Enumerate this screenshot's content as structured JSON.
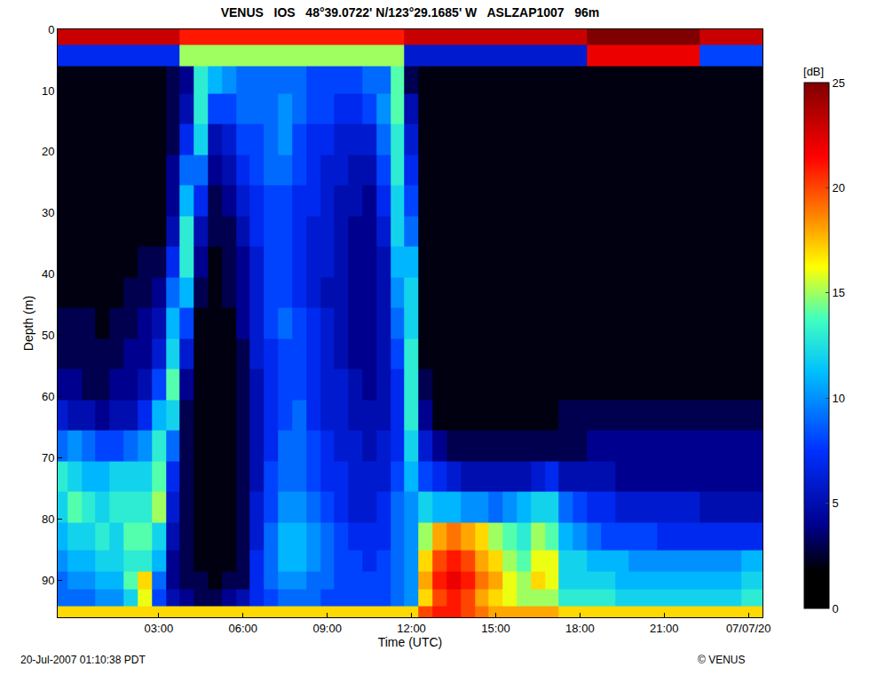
{
  "chart_data": {
    "type": "heatmap",
    "title": "VENUS   IOS   48°39.0722' N/123°29.1685' W   ASLZAP1007   96m",
    "x_label": "Time (UTC)",
    "y_label": "Depth (m)",
    "annotations": [
      "20-Jul-2007 01:10:38 PDT",
      "© VENUS"
    ],
    "xlim": [
      -0.6,
      24.5
    ],
    "xticks": [
      {
        "value": 3,
        "label": "03:00"
      },
      {
        "value": 6,
        "label": "06:00"
      },
      {
        "value": 9,
        "label": "09:00"
      },
      {
        "value": 12,
        "label": "12:00"
      },
      {
        "value": 15,
        "label": "15:00"
      },
      {
        "value": 18,
        "label": "18:00"
      },
      {
        "value": 21,
        "label": "21:00"
      },
      {
        "value": 24,
        "label": "07/07/20"
      }
    ],
    "ylim": [
      96,
      0
    ],
    "yticks": [
      0,
      10,
      20,
      30,
      40,
      50,
      60,
      70,
      80,
      90
    ],
    "grid": false,
    "colorbar": {
      "title": "[dB]",
      "range": [
        0,
        25
      ],
      "ticks": [
        0,
        5,
        10,
        15,
        20,
        25
      ]
    },
    "x": [
      -0.5,
      0,
      0.5,
      1,
      1.5,
      2,
      2.5,
      3,
      3.5,
      4,
      4.5,
      5,
      5.5,
      6,
      6.5,
      7,
      7.5,
      8,
      8.5,
      9,
      9.5,
      10,
      10.5,
      11,
      11.5,
      12,
      12.5,
      13,
      13.5,
      14,
      14.5,
      15,
      15.5,
      16,
      16.5,
      17,
      17.5,
      18,
      18.5,
      19,
      19.5,
      20,
      20.5,
      21,
      21.5,
      22,
      22.5,
      23,
      23.5,
      24,
      24.5
    ],
    "y": [
      1,
      4,
      8,
      13,
      18,
      23,
      28,
      33,
      38,
      43,
      48,
      53,
      58,
      63,
      68,
      73,
      78,
      83,
      87,
      90,
      93,
      95.5
    ],
    "z": [
      [
        23,
        23,
        23,
        23,
        23,
        23,
        23,
        23,
        23,
        21,
        21,
        21,
        21,
        21,
        21,
        21,
        21,
        21,
        21,
        21,
        21,
        21,
        21,
        21,
        21,
        23,
        23,
        23,
        23,
        23,
        23,
        23,
        23,
        23,
        23,
        23,
        23,
        23,
        25,
        25,
        25,
        25,
        25,
        25,
        25,
        25,
        23,
        23,
        23,
        23,
        23
      ],
      [
        7,
        7,
        7,
        7,
        7,
        7,
        7,
        7,
        7,
        15,
        15,
        15,
        15,
        15,
        15,
        15,
        15,
        15,
        15,
        15,
        15,
        15,
        15,
        15,
        15,
        6,
        6,
        6,
        6,
        6,
        6,
        6,
        6,
        6,
        6,
        6,
        6,
        6,
        22,
        22,
        22,
        22,
        22,
        22,
        22,
        22,
        8,
        8,
        8,
        8,
        8
      ],
      [
        2,
        2,
        2,
        2,
        2,
        2,
        2,
        2,
        3,
        4,
        13,
        11,
        10,
        9,
        9,
        9,
        9,
        9,
        8,
        8,
        8,
        8,
        9,
        9,
        14,
        3,
        2,
        2,
        2,
        2,
        2,
        2,
        2,
        2,
        2,
        2,
        2,
        2,
        2,
        2,
        2,
        2,
        2,
        2,
        2,
        2,
        2,
        2,
        2,
        2,
        2
      ],
      [
        2,
        2,
        2,
        2,
        2,
        2,
        2,
        2,
        3,
        5,
        13,
        8,
        8,
        9,
        9,
        9,
        10,
        9,
        8,
        8,
        7,
        7,
        8,
        10,
        14,
        5,
        2,
        2,
        2,
        2,
        2,
        2,
        2,
        2,
        2,
        2,
        2,
        2,
        2,
        2,
        2,
        2,
        2,
        2,
        2,
        2,
        2,
        2,
        2,
        2,
        2
      ],
      [
        2,
        2,
        2,
        2,
        2,
        2,
        2,
        2,
        3,
        7,
        12,
        5,
        6,
        8,
        8,
        9,
        10,
        8,
        7,
        7,
        6,
        6,
        6,
        9,
        13,
        6,
        2,
        2,
        2,
        2,
        2,
        2,
        2,
        2,
        2,
        2,
        2,
        2,
        2,
        2,
        2,
        2,
        2,
        2,
        2,
        2,
        2,
        2,
        2,
        2,
        2
      ],
      [
        2,
        2,
        2,
        2,
        2,
        2,
        2,
        2,
        4,
        9,
        9,
        4,
        5,
        7,
        8,
        9,
        9,
        8,
        7,
        6,
        6,
        5,
        5,
        8,
        13,
        7,
        2,
        2,
        2,
        2,
        2,
        2,
        2,
        2,
        2,
        2,
        2,
        2,
        2,
        2,
        2,
        2,
        2,
        2,
        2,
        2,
        2,
        2,
        2,
        2,
        2
      ],
      [
        2,
        2,
        2,
        2,
        2,
        2,
        2,
        2,
        4,
        11,
        7,
        3,
        4,
        6,
        7,
        8,
        8,
        7,
        7,
        6,
        5,
        5,
        4,
        7,
        12,
        8,
        2,
        2,
        2,
        2,
        2,
        2,
        2,
        2,
        2,
        2,
        2,
        2,
        2,
        2,
        2,
        2,
        2,
        2,
        2,
        2,
        2,
        2,
        2,
        2,
        2
      ],
      [
        2,
        2,
        2,
        2,
        2,
        2,
        2,
        2,
        5,
        13,
        5,
        3,
        3,
        5,
        7,
        8,
        8,
        7,
        6,
        6,
        5,
        4,
        4,
        6,
        12,
        9,
        2,
        2,
        2,
        2,
        2,
        2,
        2,
        2,
        2,
        2,
        2,
        2,
        2,
        2,
        2,
        2,
        2,
        2,
        2,
        2,
        2,
        2,
        2,
        2,
        2
      ],
      [
        2,
        2,
        2,
        2,
        2,
        2,
        3,
        3,
        7,
        13,
        4,
        2,
        3,
        4,
        6,
        8,
        8,
        7,
        6,
        6,
        5,
        4,
        4,
        5,
        11,
        11,
        2,
        2,
        2,
        2,
        2,
        2,
        2,
        2,
        2,
        2,
        2,
        2,
        2,
        2,
        2,
        2,
        2,
        2,
        2,
        2,
        2,
        2,
        2,
        2,
        2
      ],
      [
        2,
        2,
        2,
        2,
        2,
        3,
        3,
        4,
        9,
        11,
        3,
        2,
        3,
        4,
        6,
        8,
        8,
        7,
        6,
        5,
        5,
        4,
        4,
        5,
        10,
        12,
        2,
        2,
        2,
        2,
        2,
        2,
        2,
        2,
        2,
        2,
        2,
        2,
        2,
        2,
        2,
        2,
        2,
        2,
        2,
        2,
        2,
        2,
        2,
        2,
        2
      ],
      [
        3,
        3,
        3,
        2,
        3,
        3,
        4,
        5,
        11,
        8,
        2,
        2,
        2,
        4,
        6,
        8,
        9,
        8,
        7,
        6,
        5,
        4,
        4,
        5,
        9,
        12,
        2,
        2,
        2,
        2,
        2,
        2,
        2,
        2,
        2,
        2,
        2,
        2,
        2,
        2,
        2,
        2,
        2,
        2,
        2,
        2,
        2,
        2,
        2,
        2,
        2
      ],
      [
        3,
        3,
        3,
        3,
        3,
        4,
        4,
        6,
        12,
        6,
        2,
        2,
        2,
        3,
        6,
        7,
        8,
        8,
        7,
        6,
        5,
        4,
        4,
        5,
        8,
        13,
        2,
        2,
        2,
        2,
        2,
        2,
        2,
        2,
        2,
        2,
        2,
        2,
        2,
        2,
        2,
        2,
        2,
        2,
        2,
        2,
        2,
        2,
        2,
        2,
        2
      ],
      [
        4,
        4,
        3,
        3,
        4,
        4,
        5,
        8,
        14,
        4,
        2,
        2,
        2,
        3,
        5,
        7,
        8,
        8,
        7,
        6,
        6,
        5,
        4,
        5,
        7,
        13,
        3,
        2,
        2,
        2,
        2,
        2,
        2,
        2,
        2,
        2,
        2,
        2,
        2,
        2,
        2,
        2,
        2,
        2,
        2,
        2,
        2,
        2,
        2,
        2,
        2
      ],
      [
        6,
        5,
        5,
        4,
        5,
        5,
        7,
        11,
        12,
        3,
        2,
        2,
        2,
        3,
        5,
        7,
        8,
        9,
        7,
        6,
        6,
        5,
        5,
        5,
        7,
        13,
        4,
        2,
        2,
        2,
        2,
        2,
        2,
        2,
        2,
        2,
        3,
        3,
        3,
        3,
        3,
        3,
        3,
        3,
        3,
        3,
        3,
        3,
        3,
        3,
        3
      ],
      [
        9,
        10,
        9,
        8,
        8,
        9,
        10,
        13,
        9,
        3,
        2,
        2,
        2,
        3,
        5,
        7,
        9,
        9,
        8,
        7,
        6,
        6,
        5,
        6,
        7,
        12,
        6,
        4,
        3,
        3,
        3,
        3,
        3,
        3,
        3,
        3,
        3,
        3,
        4,
        4,
        4,
        4,
        4,
        4,
        4,
        4,
        4,
        4,
        4,
        4,
        4
      ],
      [
        13,
        12,
        11,
        11,
        12,
        12,
        12,
        14,
        7,
        3,
        2,
        2,
        2,
        3,
        5,
        8,
        9,
        9,
        8,
        7,
        7,
        6,
        6,
        6,
        8,
        11,
        8,
        7,
        6,
        5,
        5,
        5,
        5,
        5,
        6,
        7,
        5,
        5,
        5,
        5,
        4,
        4,
        4,
        4,
        4,
        4,
        4,
        4,
        4,
        4,
        4
      ],
      [
        12,
        14,
        13,
        12,
        13,
        13,
        13,
        15,
        6,
        3,
        2,
        2,
        2,
        3,
        6,
        8,
        10,
        10,
        9,
        8,
        7,
        6,
        6,
        7,
        9,
        10,
        12,
        11,
        11,
        10,
        10,
        9,
        10,
        11,
        12,
        12,
        9,
        8,
        7,
        7,
        6,
        6,
        6,
        6,
        6,
        6,
        5,
        5,
        5,
        5,
        5
      ],
      [
        11,
        12,
        12,
        13,
        12,
        14,
        14,
        12,
        5,
        3,
        2,
        2,
        2,
        3,
        6,
        9,
        11,
        11,
        10,
        9,
        8,
        7,
        7,
        7,
        9,
        10,
        15,
        18,
        19,
        18,
        17,
        15,
        14,
        13,
        15,
        14,
        11,
        10,
        9,
        8,
        8,
        8,
        8,
        7,
        7,
        7,
        7,
        7,
        7,
        7,
        7
      ],
      [
        10,
        11,
        11,
        12,
        12,
        13,
        13,
        11,
        4,
        3,
        2,
        2,
        2,
        3,
        7,
        9,
        11,
        11,
        10,
        9,
        8,
        8,
        7,
        8,
        9,
        10,
        17,
        20,
        21,
        20,
        18,
        17,
        15,
        14,
        16,
        16,
        12,
        12,
        11,
        11,
        11,
        10,
        10,
        10,
        10,
        10,
        10,
        10,
        10,
        11,
        11
      ],
      [
        9,
        10,
        10,
        11,
        11,
        14,
        17,
        9,
        4,
        3,
        3,
        2,
        3,
        3,
        7,
        9,
        10,
        10,
        9,
        9,
        8,
        8,
        8,
        8,
        9,
        10,
        18,
        21,
        22,
        21,
        19,
        18,
        16,
        15,
        17,
        16,
        12,
        12,
        12,
        12,
        11,
        11,
        11,
        11,
        11,
        11,
        11,
        11,
        11,
        12,
        12
      ],
      [
        9,
        9,
        9,
        10,
        10,
        12,
        16,
        8,
        5,
        4,
        3,
        3,
        4,
        5,
        7,
        8,
        9,
        9,
        9,
        8,
        8,
        8,
        8,
        8,
        9,
        10,
        17,
        20,
        21,
        20,
        18,
        17,
        16,
        15,
        15,
        15,
        13,
        13,
        13,
        13,
        12,
        12,
        12,
        12,
        12,
        12,
        12,
        12,
        12,
        13,
        13
      ],
      [
        17,
        17,
        17,
        17,
        17,
        17,
        17,
        17,
        17,
        17,
        17,
        17,
        17,
        17,
        17,
        17,
        17,
        17,
        17,
        17,
        17,
        17,
        17,
        17,
        17,
        17,
        20,
        21,
        21,
        20,
        19,
        18,
        18,
        18,
        18,
        18,
        17,
        17,
        17,
        17,
        17,
        17,
        17,
        17,
        17,
        17,
        17,
        17,
        17,
        17,
        17
      ]
    ]
  }
}
